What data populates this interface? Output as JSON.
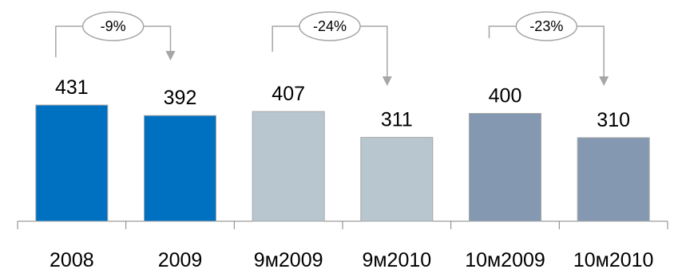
{
  "chart_data": {
    "type": "bar",
    "categories": [
      "2008",
      "2009",
      "9м2009",
      "9м2010",
      "10м2009",
      "10м2010"
    ],
    "values": [
      431,
      392,
      407,
      311,
      400,
      310
    ],
    "bar_colors": [
      "#0070C0",
      "#0070C0",
      "#B8C7CF",
      "#B8C7CF",
      "#8499B1",
      "#8499B1"
    ],
    "bar_stroke": "#A6A6A6",
    "axis_color": "#808080",
    "connector_color": "#A6A6A6",
    "changes": [
      {
        "from": 0,
        "to": 1,
        "label": "-9%"
      },
      {
        "from": 2,
        "to": 3,
        "label": "-24%"
      },
      {
        "from": 4,
        "to": 5,
        "label": "-23%"
      }
    ],
    "title": "",
    "xlabel": "",
    "ylabel": "",
    "ylim": [
      0,
      431
    ],
    "grid": false,
    "legend": false
  }
}
